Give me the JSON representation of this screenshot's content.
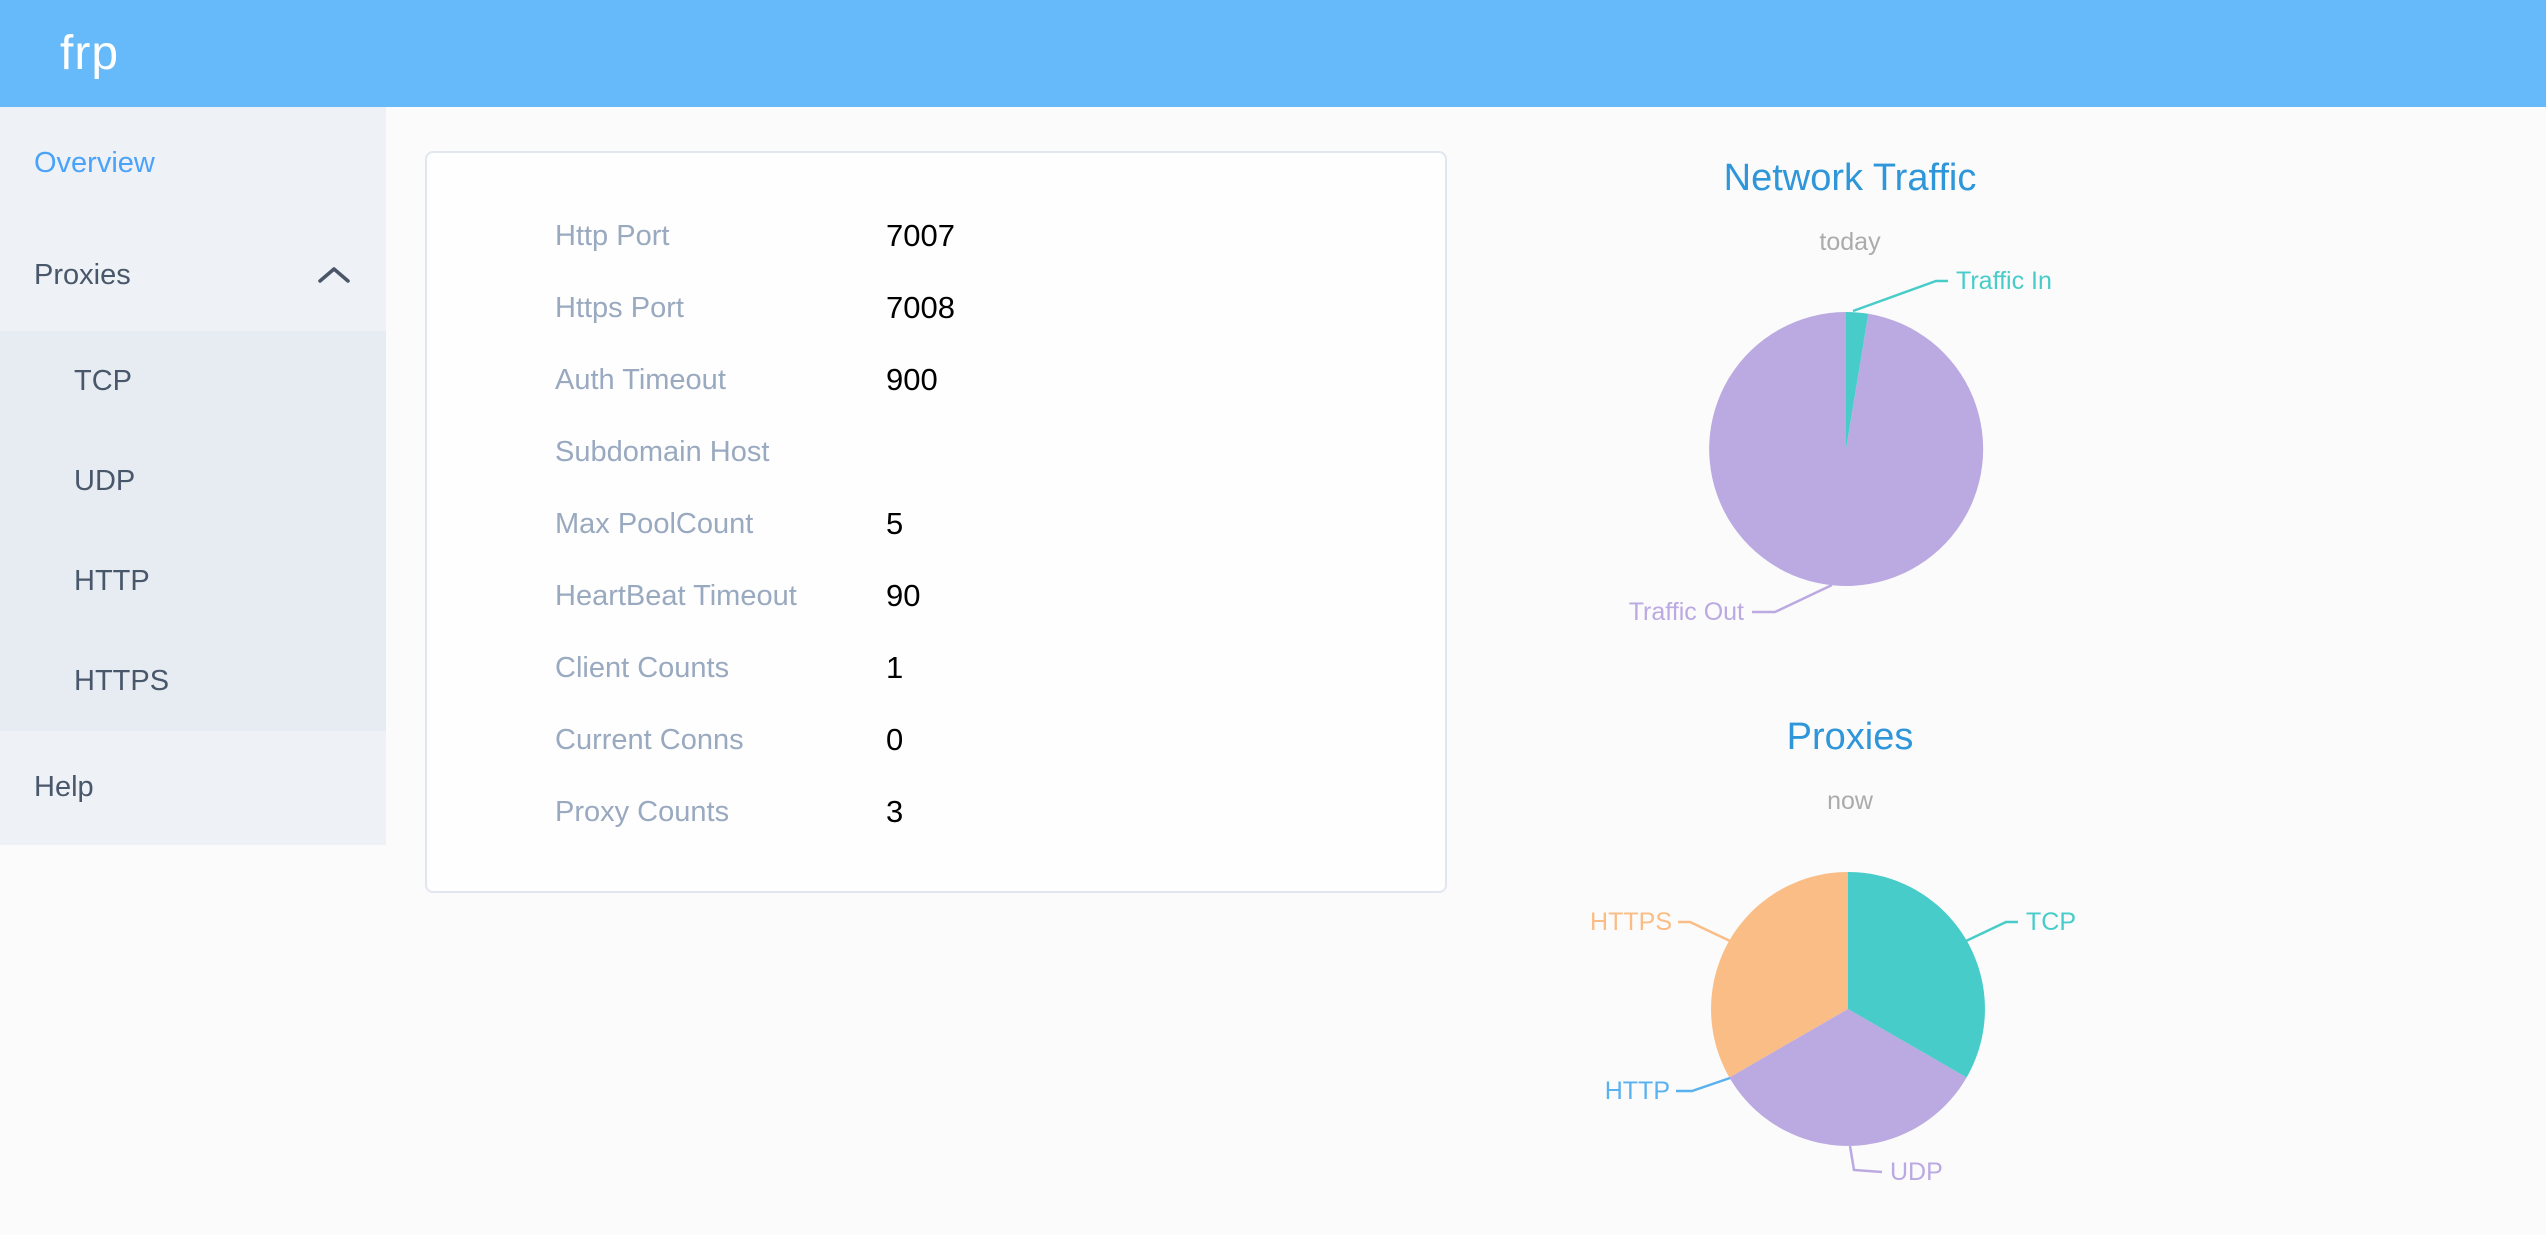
{
  "header": {
    "logo": "frp"
  },
  "sidebar": {
    "items": [
      {
        "label": "Overview",
        "active": true
      },
      {
        "label": "Proxies",
        "expanded": true
      },
      {
        "label": "Help"
      }
    ],
    "proxies_children": [
      {
        "label": "TCP"
      },
      {
        "label": "UDP"
      },
      {
        "label": "HTTP"
      },
      {
        "label": "HTTPS"
      }
    ]
  },
  "overview": {
    "rows": [
      {
        "label": "Http Port",
        "value": "7007"
      },
      {
        "label": "Https Port",
        "value": "7008"
      },
      {
        "label": "Auth Timeout",
        "value": "900"
      },
      {
        "label": "Subdomain Host",
        "value": ""
      },
      {
        "label": "Max PoolCount",
        "value": "5"
      },
      {
        "label": "HeartBeat Timeout",
        "value": "90"
      },
      {
        "label": "Client Counts",
        "value": "1"
      },
      {
        "label": "Current Conns",
        "value": "0"
      },
      {
        "label": "Proxy Counts",
        "value": "3"
      }
    ]
  },
  "chart_data": [
    {
      "type": "pie",
      "title": "Network Traffic",
      "subtitle": "today",
      "legend_position": "callout-labels",
      "values_are_percent_estimates": true,
      "series": [
        {
          "name": "Traffic In",
          "value": 2.6,
          "color": "#48ccc9"
        },
        {
          "name": "Traffic Out",
          "value": 97.4,
          "color": "#bba9e1"
        }
      ]
    },
    {
      "type": "pie",
      "title": "Proxies",
      "subtitle": "now",
      "legend_position": "callout-labels",
      "series": [
        {
          "name": "TCP",
          "value": 1,
          "color": "#48ccc9"
        },
        {
          "name": "UDP",
          "value": 1,
          "color": "#bba9e1"
        },
        {
          "name": "HTTP",
          "value": 0,
          "color": "#5ab1ef"
        },
        {
          "name": "HTTPS",
          "value": 1,
          "color": "#f9bd85"
        }
      ]
    }
  ],
  "colors": {
    "header_bg": "#66baf9",
    "sidebar_bg": "#eef1f6",
    "submenu_bg": "#e7ebf2",
    "menu_text": "#48576a",
    "menu_active": "#4aa2f9",
    "card_label": "#99a9bf",
    "card_value": "#000000",
    "chart_title": "#2e96d9",
    "chart_subtitle": "#ababab"
  }
}
